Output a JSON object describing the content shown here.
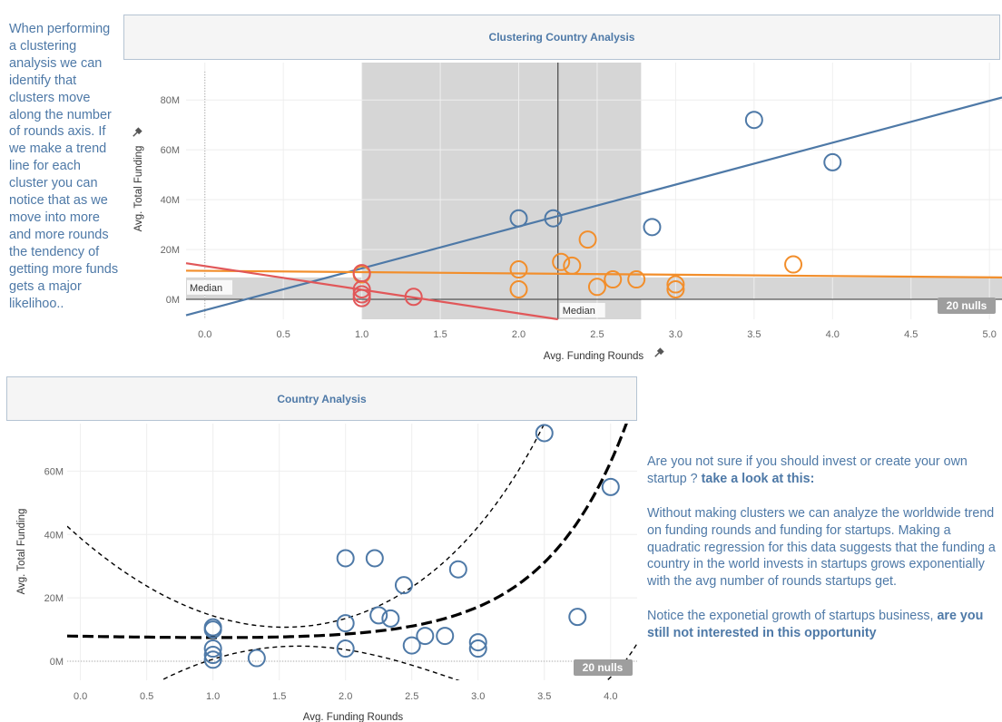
{
  "side_note": "When performing a clustering analysis we can identify that clusters move along the number of rounds axis. If we make a trend line for each cluster you can notice that as we move into more and more rounds the tendency of getting more funds gets a major likelihoo..",
  "right_text": {
    "p1_plain": "Are you not sure if you should invest or create your own startup ? ",
    "p1_bold": "take a look at this:",
    "p2": "Without making clusters we can analyze the worldwide trend on funding rounds and funding for startups. Making a quadratic regression for this data suggests that the funding a country in the world invests in startups grows exponentially with the avg number of rounds startups get.",
    "p3_plain": "Notice the exponetial growth of startups business, ",
    "p3_bold": "are you still not interested in this opportunity"
  },
  "colors": {
    "blue": "#4e79a7",
    "orange": "#f28e2b",
    "red": "#e15759",
    "band": "#d6d6d6",
    "nulls_badge": "#9e9e9e"
  },
  "chart_data": [
    {
      "type": "scatter",
      "title": "Clustering Country Analysis",
      "xlabel": "Avg. Funding Rounds",
      "ylabel": "Avg. Total Funding",
      "xlim": [
        -0.12,
        5.08
      ],
      "ylim": [
        -8,
        95
      ],
      "x_ticks": [
        0.0,
        0.5,
        1.0,
        1.5,
        2.0,
        2.5,
        3.0,
        3.5,
        4.0,
        4.5,
        5.0
      ],
      "x_tick_labels": [
        "0.0",
        "0.5",
        "1.0",
        "1.5",
        "2.0",
        "2.5",
        "3.0",
        "3.5",
        "4.0",
        "4.5",
        "5.0"
      ],
      "y_ticks": [
        0,
        20,
        40,
        60,
        80
      ],
      "y_tick_labels": [
        "0M",
        "20M",
        "40M",
        "60M",
        "80M"
      ],
      "x_pin_icon": "pin-icon",
      "y_pin_icon": "pin-icon",
      "median_label": "Median",
      "median_x": 2.25,
      "median_y": 0.6,
      "x_band": [
        1.0,
        2.78
      ],
      "y_band": [
        0,
        8.8
      ],
      "nulls_label": "20 nulls",
      "grid": true,
      "series": [
        {
          "color": "#4e79a7",
          "points": [
            [
              2.0,
              32.5
            ],
            [
              2.22,
              32.5
            ],
            [
              2.85,
              29
            ],
            [
              3.5,
              72
            ],
            [
              4.0,
              55
            ]
          ],
          "trend": [
            [
              -0.12,
              -6.4
            ],
            [
              5.08,
              81
            ]
          ]
        },
        {
          "color": "#f28e2b",
          "points": [
            [
              1.0,
              10
            ],
            [
              2.0,
              12
            ],
            [
              2.0,
              4
            ],
            [
              2.27,
              15
            ],
            [
              2.34,
              13.5
            ],
            [
              2.44,
              24
            ],
            [
              2.5,
              5
            ],
            [
              2.6,
              8
            ],
            [
              2.75,
              8
            ],
            [
              3.0,
              6
            ],
            [
              3.0,
              4
            ],
            [
              3.75,
              14
            ]
          ],
          "trend": [
            [
              -0.12,
              11.5
            ],
            [
              5.08,
              8.8
            ]
          ]
        },
        {
          "color": "#e15759",
          "points": [
            [
              1.0,
              10.5
            ],
            [
              1.0,
              4
            ],
            [
              1.0,
              2
            ],
            [
              1.0,
              0.5
            ],
            [
              1.33,
              1
            ]
          ],
          "trend": [
            [
              -0.12,
              14.5
            ],
            [
              2.25,
              -8
            ]
          ]
        }
      ]
    },
    {
      "type": "scatter",
      "title": "Country Analysis",
      "xlabel": "Avg. Funding Rounds",
      "ylabel": "Avg. Total Funding",
      "xlim": [
        -0.1,
        4.2
      ],
      "ylim": [
        -6,
        75
      ],
      "x_ticks": [
        0.0,
        0.5,
        1.0,
        1.5,
        2.0,
        2.5,
        3.0,
        3.5,
        4.0
      ],
      "x_tick_labels": [
        "0.0",
        "0.5",
        "1.0",
        "1.5",
        "2.0",
        "2.5",
        "3.0",
        "3.5",
        "4.0"
      ],
      "y_ticks": [
        0,
        20,
        40,
        60
      ],
      "y_tick_labels": [
        "0M",
        "20M",
        "40M",
        "60M"
      ],
      "nulls_label": "20 nulls",
      "grid": true,
      "color": "#4e79a7",
      "points": [
        [
          1.0,
          10
        ],
        [
          1.0,
          10.7
        ],
        [
          1.0,
          4
        ],
        [
          1.0,
          2
        ],
        [
          1.0,
          0.5
        ],
        [
          1.33,
          1
        ],
        [
          2.0,
          32.5
        ],
        [
          2.22,
          32.5
        ],
        [
          2.0,
          12
        ],
        [
          2.0,
          4
        ],
        [
          2.25,
          14.5
        ],
        [
          2.34,
          13.5
        ],
        [
          2.44,
          24
        ],
        [
          2.5,
          5
        ],
        [
          2.6,
          8
        ],
        [
          2.75,
          8
        ],
        [
          2.85,
          29
        ],
        [
          3.0,
          6
        ],
        [
          3.0,
          4
        ],
        [
          3.5,
          72
        ],
        [
          3.75,
          14
        ],
        [
          4.0,
          55
        ]
      ],
      "trend_quadratic": {
        "a": 7.8,
        "b": -0.8,
        "c": 0.0968
      },
      "band_offsets": {
        "a": 31,
        "b": -35.3,
        "c": 11.13
      }
    }
  ]
}
